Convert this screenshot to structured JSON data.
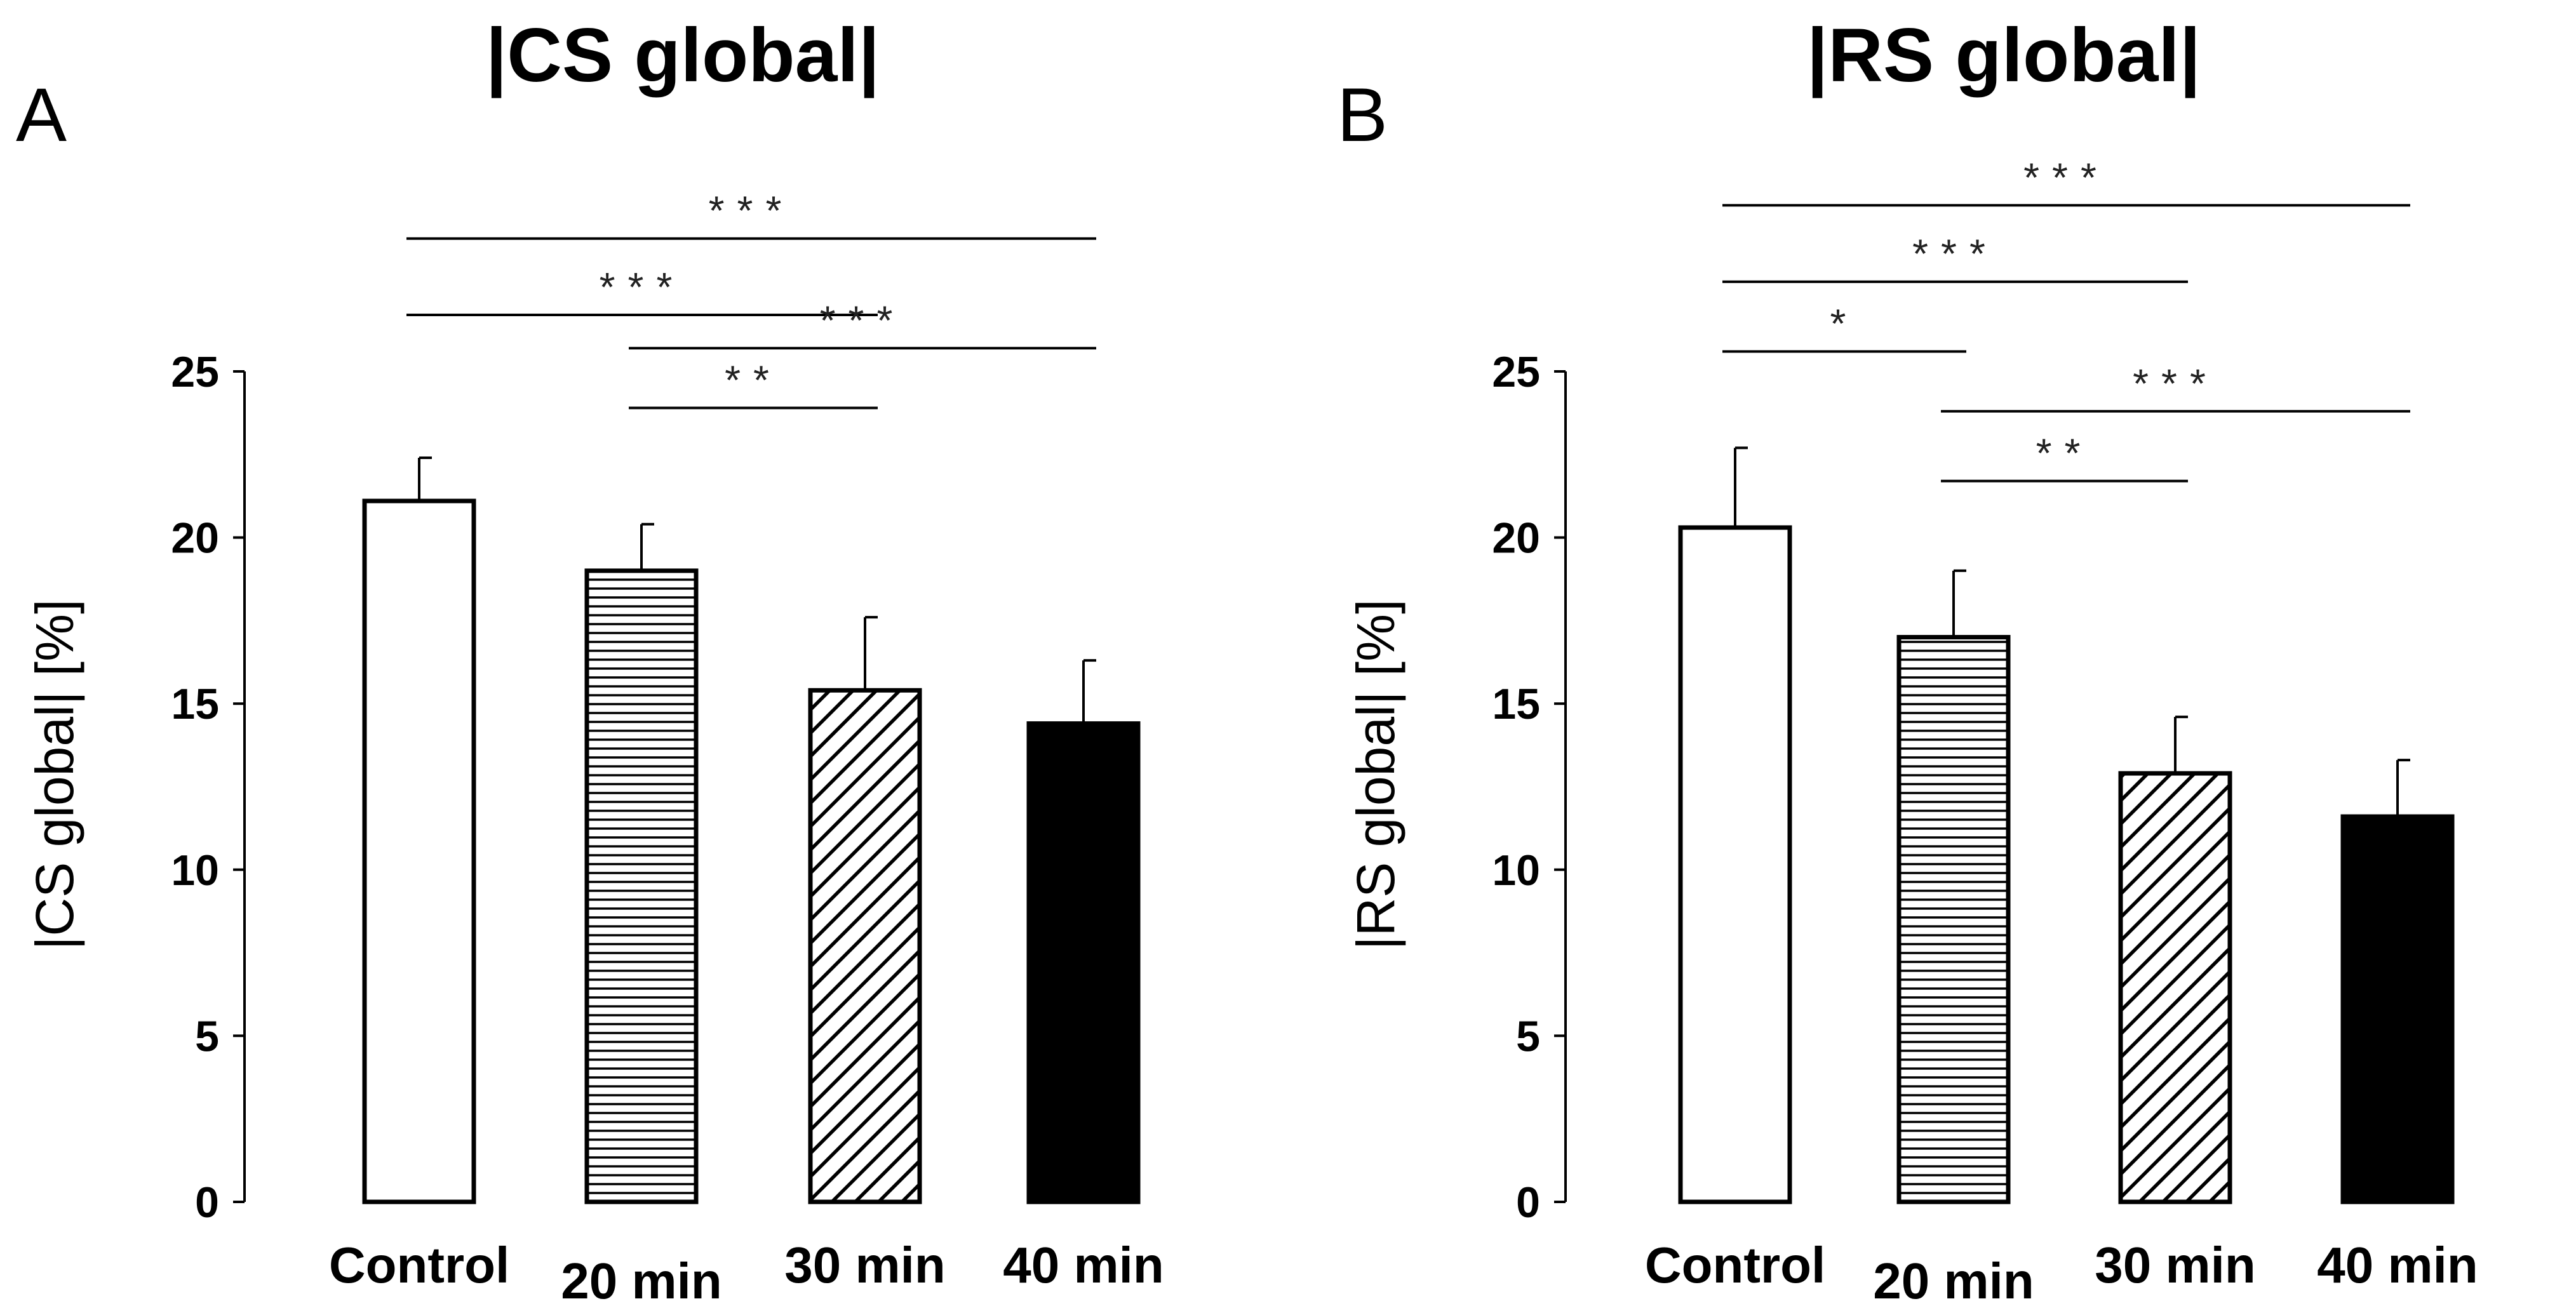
{
  "chart_data": [
    {
      "type": "bar",
      "panel_letter": "A",
      "title": "|CS global|",
      "ylabel": "|CS global| [%]",
      "xlabel": "",
      "categories": [
        "Control",
        "20 min",
        "30 min",
        "40 min"
      ],
      "values": [
        21.1,
        19.0,
        15.4,
        14.4
      ],
      "errors": [
        1.3,
        1.4,
        2.2,
        1.9
      ],
      "bar_fills": [
        "white",
        "horizontal-stripes",
        "diagonal-stripes",
        "black"
      ],
      "ylim": [
        0,
        25
      ],
      "yticks": [
        0,
        5,
        10,
        15,
        20,
        25
      ],
      "significance": [
        {
          "from": 0,
          "to": 3,
          "label": "***",
          "level": 29.0
        },
        {
          "from": 0,
          "to": 2,
          "label": "***",
          "level": 26.7
        },
        {
          "from": 1,
          "to": 3,
          "label": "***",
          "level": 25.7
        },
        {
          "from": 1,
          "to": 2,
          "label": "**",
          "level": 23.9
        }
      ]
    },
    {
      "type": "bar",
      "panel_letter": "B",
      "title": "|RS global|",
      "ylabel": "|RS global| [%]",
      "xlabel": "",
      "categories": [
        "Control",
        "20 min",
        "30 min",
        "40 min"
      ],
      "values": [
        20.3,
        17.0,
        12.9,
        11.6
      ],
      "errors": [
        2.4,
        2.0,
        1.7,
        1.7
      ],
      "bar_fills": [
        "white",
        "horizontal-stripes",
        "diagonal-stripes",
        "black"
      ],
      "ylim": [
        0,
        25
      ],
      "yticks": [
        0,
        5,
        10,
        15,
        20,
        25
      ],
      "significance": [
        {
          "from": 0,
          "to": 3,
          "label": "***",
          "level": 30.0
        },
        {
          "from": 0,
          "to": 2,
          "label": "***",
          "level": 27.7
        },
        {
          "from": 0,
          "to": 1,
          "label": "*",
          "level": 25.6
        },
        {
          "from": 1,
          "to": 3,
          "label": "***",
          "level": 23.8
        },
        {
          "from": 1,
          "to": 2,
          "label": "**",
          "level": 21.7
        }
      ]
    }
  ]
}
